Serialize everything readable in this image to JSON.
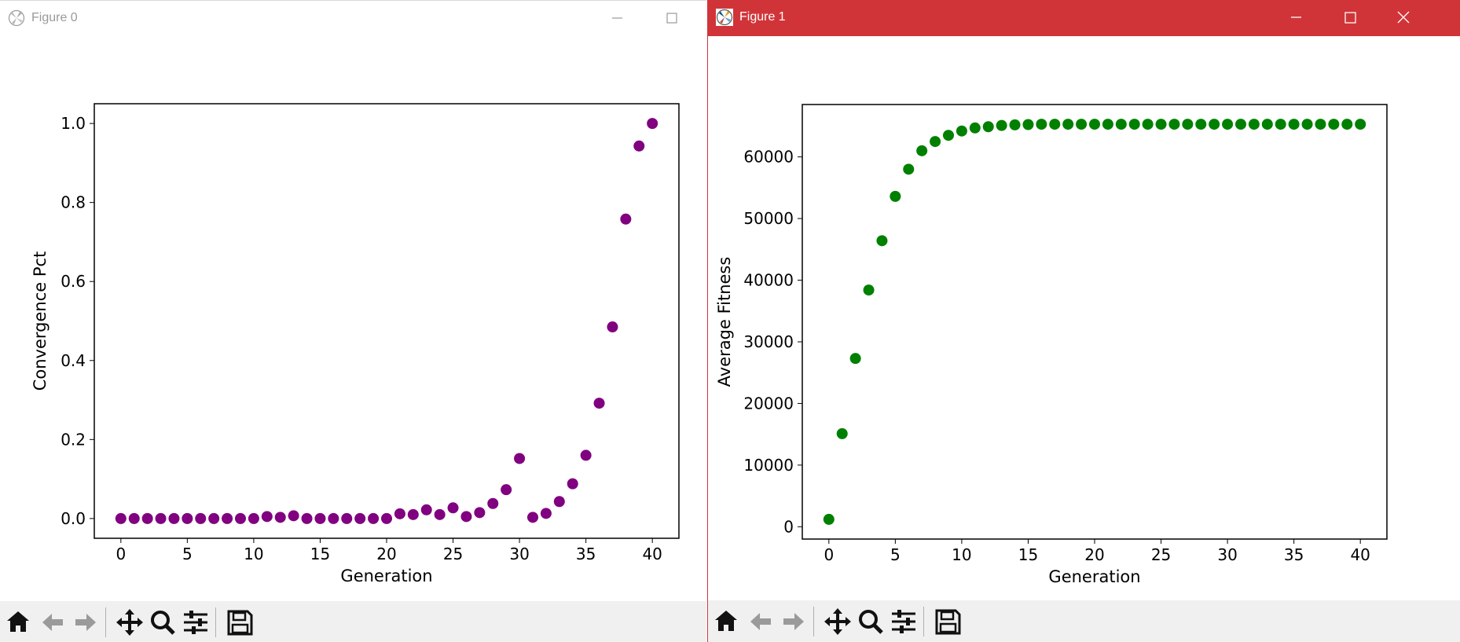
{
  "windows": [
    {
      "title": "Figure 0",
      "active": false
    },
    {
      "title": "Figure 1",
      "active": true
    }
  ],
  "toolbar": {
    "buttons": [
      "home-icon",
      "back-arrow-icon",
      "forward-arrow-icon",
      "pan-icon",
      "zoom-icon",
      "configure-subplots-icon",
      "save-icon"
    ]
  },
  "chart_data": [
    {
      "type": "scatter",
      "xlabel": "Generation",
      "ylabel": "Convergence Pct",
      "xlim": [
        -2,
        42
      ],
      "ylim": [
        -0.05,
        1.05
      ],
      "xticks": [
        0,
        5,
        10,
        15,
        20,
        25,
        30,
        35,
        40
      ],
      "yticks": [
        0.0,
        0.2,
        0.4,
        0.6,
        0.8,
        1.0
      ],
      "ytick_labels": [
        "0.0",
        "0.2",
        "0.4",
        "0.6",
        "0.8",
        "1.0"
      ],
      "color": "#800080",
      "grid": false,
      "series": [
        {
          "x": [
            0,
            1,
            2,
            3,
            4,
            5,
            6,
            7,
            8,
            9,
            10,
            11,
            12,
            13,
            14,
            15,
            16,
            17,
            18,
            19,
            20,
            21,
            22,
            23,
            24,
            25,
            26,
            27,
            28,
            29,
            30,
            31,
            32,
            33,
            34,
            35,
            36,
            37,
            38,
            39,
            40
          ],
          "y": [
            0,
            0,
            0,
            0,
            0,
            0,
            0,
            0,
            0,
            0,
            0,
            0.005,
            0.003,
            0.007,
            0,
            0,
            0,
            0,
            0,
            0,
            0,
            0.012,
            0.01,
            0.022,
            0.01,
            0.027,
            0.005,
            0.015,
            0.038,
            0.073,
            0.152,
            0.003,
            0.013,
            0.043,
            0.088,
            0.16,
            0.292,
            0.485,
            0.758,
            0.943,
            1.0
          ]
        }
      ]
    },
    {
      "type": "scatter",
      "xlabel": "Generation",
      "ylabel": "Average Fitness",
      "xlim": [
        -2,
        42
      ],
      "ylim": [
        -2000,
        68500
      ],
      "xticks": [
        0,
        5,
        10,
        15,
        20,
        25,
        30,
        35,
        40
      ],
      "yticks": [
        0,
        10000,
        20000,
        30000,
        40000,
        50000,
        60000
      ],
      "ytick_labels": [
        "0",
        "10000",
        "20000",
        "30000",
        "40000",
        "50000",
        "60000"
      ],
      "color": "#008000",
      "grid": false,
      "series": [
        {
          "x": [
            0,
            1,
            2,
            3,
            4,
            5,
            6,
            7,
            8,
            9,
            10,
            11,
            12,
            13,
            14,
            15,
            16,
            17,
            18,
            19,
            20,
            21,
            22,
            23,
            24,
            25,
            26,
            27,
            28,
            29,
            30,
            31,
            32,
            33,
            34,
            35,
            36,
            37,
            38,
            39,
            40
          ],
          "y": [
            1200,
            15100,
            27300,
            38400,
            46400,
            53600,
            58000,
            61000,
            62500,
            63500,
            64200,
            64700,
            64900,
            65100,
            65200,
            65250,
            65300,
            65300,
            65300,
            65300,
            65300,
            65300,
            65300,
            65300,
            65300,
            65300,
            65300,
            65300,
            65300,
            65300,
            65300,
            65300,
            65300,
            65300,
            65300,
            65300,
            65300,
            65300,
            65300,
            65300,
            65300
          ]
        }
      ]
    }
  ]
}
